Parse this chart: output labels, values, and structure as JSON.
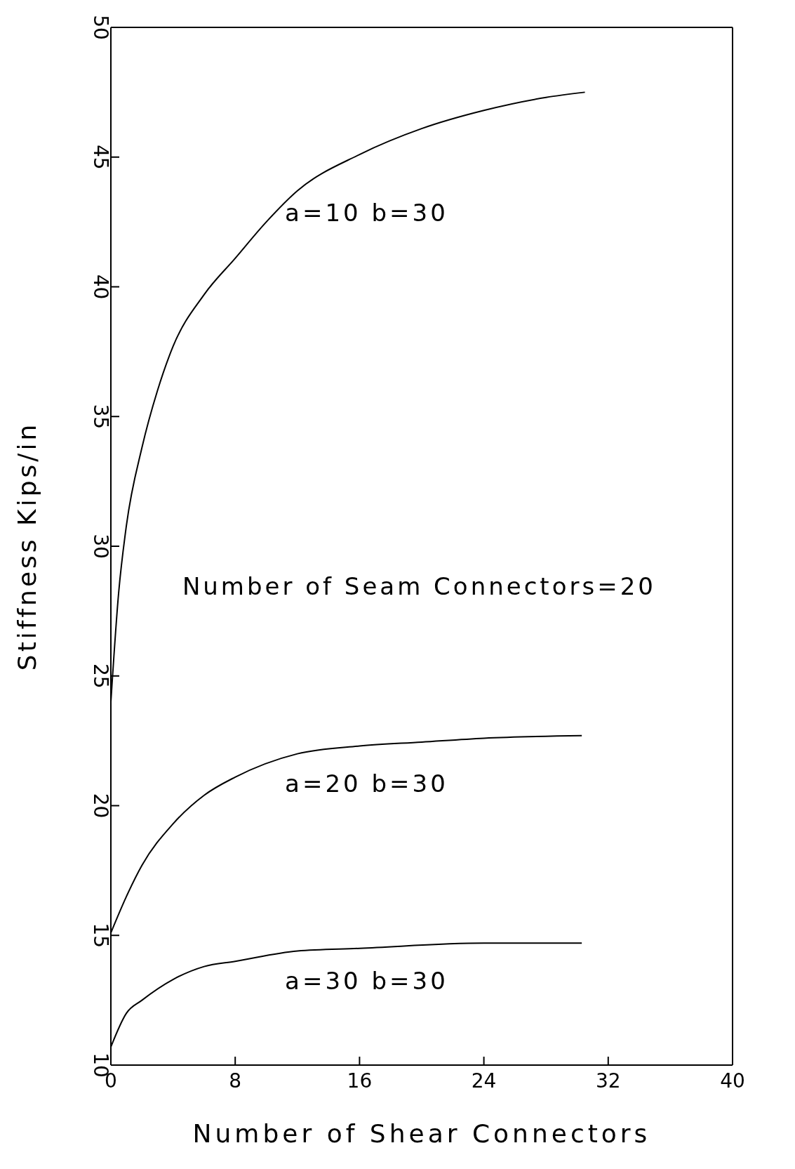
{
  "chart_data": {
    "type": "line",
    "xlabel": "Number of Shear Connectors",
    "ylabel": "Stiffness  Kips/in",
    "xlim": [
      0,
      40
    ],
    "xticks": [
      0,
      8,
      16,
      24,
      32,
      40
    ],
    "ylim": [
      10,
      50
    ],
    "yticks": [
      10,
      15,
      20,
      25,
      30,
      35,
      40,
      45,
      50
    ],
    "marker": "none",
    "line_style": "solid",
    "series": [
      {
        "color": "#000000",
        "x": [
          0,
          0.5,
          1,
          2,
          3,
          4,
          6,
          8,
          10,
          12,
          16,
          20,
          24,
          28,
          30.5
        ],
        "values": [
          24,
          28.2,
          30.8,
          33.8,
          36,
          37.7,
          39.7,
          41.1,
          42.5,
          43.7,
          45.1,
          46.1,
          46.8,
          47.3,
          47.5
        ]
      },
      {
        "color": "#000000",
        "x": [
          0,
          1,
          2,
          4,
          6,
          8,
          12,
          16,
          20,
          24,
          30.3
        ],
        "values": [
          15.1,
          16.5,
          17.7,
          19.3,
          20.4,
          21.1,
          22,
          22.3,
          22.45,
          22.6,
          22.7
        ]
      },
      {
        "color": "#000000",
        "x": [
          0,
          1,
          2,
          4,
          6,
          8,
          12,
          16,
          24,
          30.3
        ],
        "values": [
          10.7,
          12,
          12.5,
          13.3,
          13.8,
          14,
          14.4,
          14.5,
          14.7,
          14.7
        ]
      }
    ],
    "annotations": [
      "a=10  b=30",
      "Number of Seam Connectors=20",
      "a=20  b=30",
      "a=30  b=30"
    ]
  }
}
